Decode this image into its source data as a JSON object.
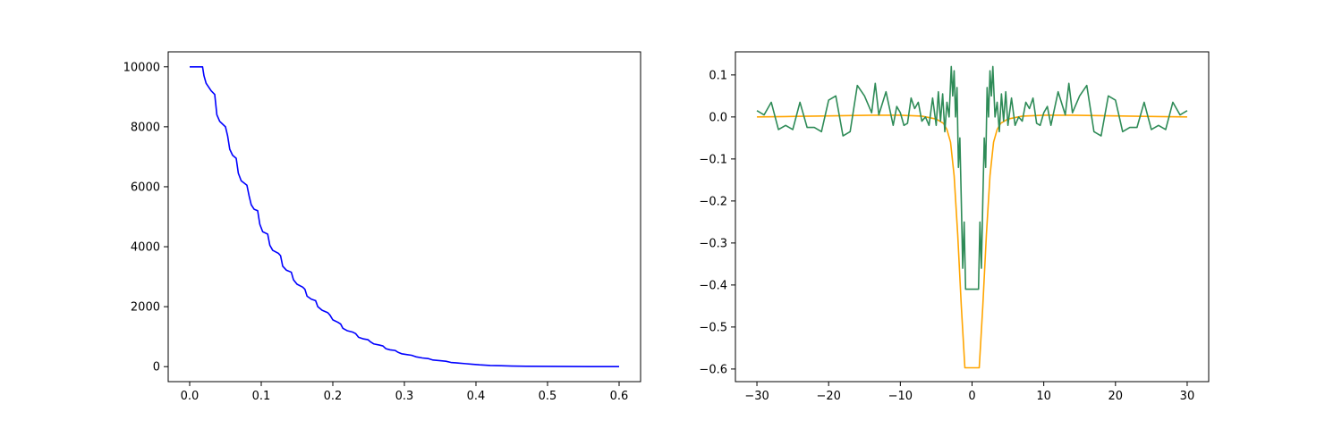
{
  "chart_data": [
    {
      "type": "line",
      "title": "",
      "xlabel": "",
      "ylabel": "",
      "xlim": [
        -0.03,
        0.63
      ],
      "ylim": [
        -500,
        10500
      ],
      "grid": false,
      "xticks": [
        0.0,
        0.1,
        0.2,
        0.3,
        0.4,
        0.5,
        0.6
      ],
      "xtick_labels": [
        "0.0",
        "0.1",
        "0.2",
        "0.3",
        "0.4",
        "0.5",
        "0.6"
      ],
      "yticks": [
        0,
        2000,
        4000,
        6000,
        8000,
        10000
      ],
      "ytick_labels": [
        "0",
        "2000",
        "4000",
        "6000",
        "8000",
        "10000"
      ],
      "series": [
        {
          "color": "#0000ff",
          "points": [
            [
              0.0,
              10000
            ],
            [
              0.018,
              10000
            ],
            [
              0.02,
              9700
            ],
            [
              0.023,
              9450
            ],
            [
              0.03,
              9200
            ],
            [
              0.035,
              9080
            ],
            [
              0.038,
              8400
            ],
            [
              0.042,
              8180
            ],
            [
              0.05,
              8000
            ],
            [
              0.053,
              7700
            ],
            [
              0.056,
              7250
            ],
            [
              0.06,
              7050
            ],
            [
              0.065,
              6950
            ],
            [
              0.068,
              6450
            ],
            [
              0.072,
              6200
            ],
            [
              0.08,
              6050
            ],
            [
              0.083,
              5700
            ],
            [
              0.086,
              5400
            ],
            [
              0.09,
              5250
            ],
            [
              0.095,
              5200
            ],
            [
              0.098,
              4750
            ],
            [
              0.102,
              4500
            ],
            [
              0.109,
              4420
            ],
            [
              0.112,
              4050
            ],
            [
              0.116,
              3880
            ],
            [
              0.124,
              3780
            ],
            [
              0.127,
              3700
            ],
            [
              0.13,
              3350
            ],
            [
              0.135,
              3220
            ],
            [
              0.142,
              3150
            ],
            [
              0.145,
              2900
            ],
            [
              0.15,
              2750
            ],
            [
              0.158,
              2650
            ],
            [
              0.161,
              2580
            ],
            [
              0.164,
              2350
            ],
            [
              0.17,
              2250
            ],
            [
              0.176,
              2200
            ],
            [
              0.179,
              2000
            ],
            [
              0.185,
              1880
            ],
            [
              0.193,
              1800
            ],
            [
              0.196,
              1720
            ],
            [
              0.2,
              1560
            ],
            [
              0.207,
              1480
            ],
            [
              0.211,
              1420
            ],
            [
              0.214,
              1280
            ],
            [
              0.22,
              1200
            ],
            [
              0.228,
              1150
            ],
            [
              0.232,
              1100
            ],
            [
              0.236,
              980
            ],
            [
              0.242,
              930
            ],
            [
              0.249,
              900
            ],
            [
              0.253,
              820
            ],
            [
              0.257,
              760
            ],
            [
              0.265,
              720
            ],
            [
              0.27,
              690
            ],
            [
              0.274,
              600
            ],
            [
              0.28,
              560
            ],
            [
              0.287,
              540
            ],
            [
              0.291,
              480
            ],
            [
              0.296,
              430
            ],
            [
              0.304,
              400
            ],
            [
              0.31,
              380
            ],
            [
              0.316,
              330
            ],
            [
              0.325,
              290
            ],
            [
              0.333,
              270
            ],
            [
              0.34,
              220
            ],
            [
              0.35,
              200
            ],
            [
              0.358,
              180
            ],
            [
              0.365,
              140
            ],
            [
              0.375,
              120
            ],
            [
              0.385,
              100
            ],
            [
              0.395,
              80
            ],
            [
              0.405,
              60
            ],
            [
              0.42,
              40
            ],
            [
              0.435,
              30
            ],
            [
              0.45,
              20
            ],
            [
              0.47,
              12
            ],
            [
              0.5,
              8
            ],
            [
              0.53,
              4
            ],
            [
              0.56,
              2
            ],
            [
              0.6,
              0
            ]
          ]
        }
      ]
    },
    {
      "type": "line",
      "title": "",
      "xlabel": "",
      "ylabel": "",
      "xlim": [
        -33,
        33
      ],
      "ylim": [
        -0.63,
        0.155
      ],
      "grid": false,
      "xticks": [
        -30,
        -20,
        -10,
        0,
        10,
        20,
        30
      ],
      "xtick_labels": [
        "−30",
        "−20",
        "−10",
        "0",
        "10",
        "20",
        "30"
      ],
      "yticks": [
        0.1,
        0.0,
        -0.1,
        -0.2,
        -0.3,
        -0.4,
        -0.5,
        -0.6
      ],
      "ytick_labels": [
        "0.1",
        "0.0",
        "−0.1",
        "−0.2",
        "−0.3",
        "−0.4",
        "−0.5",
        "−0.6"
      ],
      "series": [
        {
          "color": "#ffa500",
          "points": [
            [
              -30,
              0.0
            ],
            [
              -26,
              0.001
            ],
            [
              -22,
              0.002
            ],
            [
              -18,
              0.003
            ],
            [
              -14,
              0.004
            ],
            [
              -10,
              0.004
            ],
            [
              -7,
              0.002
            ],
            [
              -5,
              -0.005
            ],
            [
              -4,
              -0.015
            ],
            [
              -3.5,
              -0.03
            ],
            [
              -3,
              -0.06
            ],
            [
              -2.5,
              -0.14
            ],
            [
              -2,
              -0.28
            ],
            [
              -1.5,
              -0.45
            ],
            [
              -1,
              -0.597
            ],
            [
              1,
              -0.597
            ],
            [
              1.5,
              -0.45
            ],
            [
              2,
              -0.28
            ],
            [
              2.5,
              -0.14
            ],
            [
              3,
              -0.06
            ],
            [
              3.5,
              -0.03
            ],
            [
              4,
              -0.015
            ],
            [
              5,
              -0.005
            ],
            [
              7,
              0.002
            ],
            [
              10,
              0.004
            ],
            [
              14,
              0.004
            ],
            [
              18,
              0.003
            ],
            [
              22,
              0.002
            ],
            [
              26,
              0.001
            ],
            [
              30,
              0.0
            ]
          ]
        },
        {
          "color": "#2e8b57",
          "points": [
            [
              -30,
              0.015
            ],
            [
              -29,
              0.005
            ],
            [
              -28,
              0.035
            ],
            [
              -27,
              -0.03
            ],
            [
              -26,
              -0.02
            ],
            [
              -25,
              -0.03
            ],
            [
              -24,
              0.035
            ],
            [
              -23,
              -0.025
            ],
            [
              -22,
              -0.025
            ],
            [
              -21,
              -0.035
            ],
            [
              -20,
              0.04
            ],
            [
              -19,
              0.05
            ],
            [
              -18,
              -0.045
            ],
            [
              -17,
              -0.035
            ],
            [
              -16,
              0.075
            ],
            [
              -15,
              0.05
            ],
            [
              -14,
              0.01
            ],
            [
              -13.5,
              0.08
            ],
            [
              -13,
              0.005
            ],
            [
              -12,
              0.06
            ],
            [
              -11,
              -0.02
            ],
            [
              -10.5,
              0.025
            ],
            [
              -10,
              0.01
            ],
            [
              -9.5,
              -0.02
            ],
            [
              -9,
              -0.015
            ],
            [
              -8.5,
              0.045
            ],
            [
              -8,
              0.02
            ],
            [
              -7.5,
              0.035
            ],
            [
              -7,
              -0.01
            ],
            [
              -6.5,
              0.0
            ],
            [
              -6,
              -0.02
            ],
            [
              -5.5,
              0.045
            ],
            [
              -5,
              -0.02
            ],
            [
              -4.7,
              0.06
            ],
            [
              -4.4,
              -0.01
            ],
            [
              -4.1,
              0.055
            ],
            [
              -3.8,
              -0.035
            ],
            [
              -3.5,
              0.035
            ],
            [
              -3.2,
              0.0
            ],
            [
              -2.9,
              0.12
            ],
            [
              -2.7,
              0.05
            ],
            [
              -2.5,
              0.11
            ],
            [
              -2.3,
              0.0
            ],
            [
              -2.1,
              0.07
            ],
            [
              -1.9,
              -0.12
            ],
            [
              -1.7,
              -0.05
            ],
            [
              -1.5,
              -0.2
            ],
            [
              -1.3,
              -0.36
            ],
            [
              -1.1,
              -0.25
            ],
            [
              -0.9,
              -0.41
            ],
            [
              0.9,
              -0.41
            ],
            [
              1.1,
              -0.25
            ],
            [
              1.3,
              -0.36
            ],
            [
              1.5,
              -0.2
            ],
            [
              1.7,
              -0.05
            ],
            [
              1.9,
              -0.12
            ],
            [
              2.1,
              0.07
            ],
            [
              2.3,
              0.0
            ],
            [
              2.5,
              0.11
            ],
            [
              2.7,
              0.05
            ],
            [
              2.9,
              0.12
            ],
            [
              3.2,
              0.0
            ],
            [
              3.5,
              0.035
            ],
            [
              3.8,
              -0.035
            ],
            [
              4.1,
              0.055
            ],
            [
              4.4,
              -0.01
            ],
            [
              4.7,
              0.06
            ],
            [
              5,
              -0.02
            ],
            [
              5.5,
              0.045
            ],
            [
              6,
              -0.02
            ],
            [
              6.5,
              0.0
            ],
            [
              7,
              -0.01
            ],
            [
              7.5,
              0.035
            ],
            [
              8,
              0.02
            ],
            [
              8.5,
              0.045
            ],
            [
              9,
              -0.015
            ],
            [
              9.5,
              -0.02
            ],
            [
              10,
              0.01
            ],
            [
              10.5,
              0.025
            ],
            [
              11,
              -0.02
            ],
            [
              12,
              0.06
            ],
            [
              13,
              0.005
            ],
            [
              13.5,
              0.08
            ],
            [
              14,
              0.01
            ],
            [
              15,
              0.05
            ],
            [
              16,
              0.075
            ],
            [
              17,
              -0.035
            ],
            [
              18,
              -0.045
            ],
            [
              19,
              0.05
            ],
            [
              20,
              0.04
            ],
            [
              21,
              -0.035
            ],
            [
              22,
              -0.025
            ],
            [
              23,
              -0.025
            ],
            [
              24,
              0.035
            ],
            [
              25,
              -0.03
            ],
            [
              26,
              -0.02
            ],
            [
              27,
              -0.03
            ],
            [
              28,
              0.035
            ],
            [
              29,
              0.005
            ],
            [
              30,
              0.015
            ]
          ]
        }
      ]
    }
  ]
}
